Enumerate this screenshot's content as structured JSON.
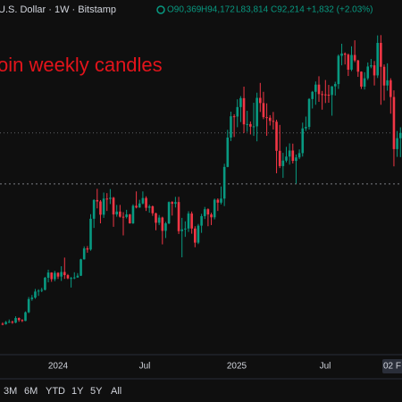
{
  "header": {
    "symbol": "U.S. Dollar · 1W · Bitstamp",
    "open": "O90,369",
    "high": "H94,172",
    "low": "L83,814",
    "close": "C92,214",
    "change": "+1,832 (+2.03%)"
  },
  "range_buttons": [
    "3M",
    "6M",
    "YTD",
    "1Y",
    "5Y",
    "All"
  ],
  "chart_data": {
    "type": "candlestick",
    "title": "oin weekly candles",
    "color_up": "#089981",
    "color_down": "#f23645",
    "title_color": "#e3141b",
    "ylim": [
      15800,
      138400
    ],
    "reference_line": 74500,
    "time_labels": [
      "2024",
      "Jul",
      "2025",
      "Jul",
      "02 F"
    ],
    "open": [
      25900,
      25800,
      26500,
      26600,
      26300,
      27900,
      27200,
      26900,
      29900,
      34500,
      35000,
      37100,
      37400,
      37700,
      41900,
      43700,
      41400,
      43600,
      42300,
      43900,
      42800,
      41700,
      41800,
      42000,
      42600,
      48300,
      52100,
      51700,
      62400,
      68900,
      68400,
      63800,
      69400,
      69300,
      69700,
      63900,
      64900,
      63100,
      63000,
      63900,
      60800,
      66900,
      66300,
      67700,
      69600,
      66200,
      66700,
      64300,
      61000,
      62800,
      58200,
      60800,
      68200,
      67600,
      68200,
      58100,
      58700,
      59000,
      64200,
      59000,
      54100,
      60000,
      63300,
      65700,
      63900,
      62900,
      69000,
      68000,
      69400,
      80400,
      90600,
      98000,
      97900,
      101200,
      104300,
      95200,
      95300,
      94400,
      94500,
      104400,
      102600,
      97700,
      97500,
      96400,
      96100,
      86000,
      80700,
      82600,
      84000,
      86100,
      82500,
      83700,
      85200,
      93800,
      94300,
      104000,
      106500,
      109000,
      105700,
      105600,
      105500,
      105400,
      108400,
      109200,
      119000,
      119800,
      119400,
      114200,
      119300,
      117400,
      113500,
      108300,
      111200,
      115300,
      115700,
      112200,
      123500,
      115200,
      108700,
      110500,
      104700,
      86600,
      90369
    ],
    "high": [
      26400,
      26900,
      27400,
      27000,
      28500,
      28100,
      27500,
      30200,
      35200,
      35900,
      38000,
      37900,
      38400,
      42200,
      44700,
      43800,
      44300,
      43800,
      45900,
      48900,
      43200,
      42200,
      43800,
      43500,
      48500,
      52800,
      52900,
      64000,
      69200,
      72800,
      68900,
      71500,
      71300,
      72700,
      70000,
      67200,
      67200,
      64700,
      65500,
      64100,
      67400,
      71900,
      69000,
      71900,
      70200,
      67300,
      67000,
      64500,
      63700,
      63100,
      61300,
      68400,
      68500,
      70000,
      70000,
      62700,
      61500,
      65000,
      64900,
      59800,
      60600,
      64100,
      66500,
      66000,
      64500,
      69400,
      69500,
      73600,
      81500,
      93300,
      99600,
      98700,
      103900,
      105000,
      108300,
      99900,
      96200,
      102700,
      106200,
      109600,
      106500,
      102500,
      98400,
      99500,
      96800,
      95000,
      85300,
      87400,
      88600,
      88500,
      84700,
      86500,
      95800,
      97900,
      104300,
      106800,
      110100,
      111900,
      106800,
      110600,
      108900,
      108500,
      110000,
      119500,
      123200,
      120200,
      119800,
      122300,
      124400,
      117600,
      113600,
      113300,
      116700,
      117900,
      117200,
      126100,
      126200,
      116000,
      116400,
      111200,
      107000,
      92900,
      94172
    ],
    "low": [
      25400,
      25600,
      26200,
      25900,
      26100,
      26600,
      26500,
      26800,
      29600,
      33900,
      34600,
      35600,
      36900,
      37500,
      40300,
      40500,
      40700,
      41500,
      40800,
      41500,
      41400,
      38500,
      41400,
      41900,
      42500,
      48200,
      50600,
      51300,
      59200,
      66000,
      60800,
      62700,
      65100,
      67500,
      59600,
      63100,
      62800,
      56600,
      62500,
      60700,
      60600,
      66000,
      66200,
      67400,
      65100,
      64500,
      63400,
      58400,
      60200,
      53500,
      55700,
      60500,
      63500,
      66300,
      57100,
      49000,
      56100,
      57800,
      57200,
      52500,
      53600,
      57500,
      62300,
      59800,
      60200,
      62200,
      65100,
      67400,
      66800,
      80300,
      89400,
      90800,
      94200,
      96000,
      92200,
      92600,
      91700,
      91200,
      89300,
      99500,
      97000,
      91200,
      94800,
      93400,
      78200,
      80000,
      76600,
      82000,
      81200,
      81600,
      74600,
      83100,
      84000,
      92900,
      93400,
      100700,
      102000,
      103000,
      100300,
      102600,
      102700,
      98200,
      105200,
      107500,
      115700,
      116000,
      112000,
      113700,
      116800,
      111700,
      107500,
      107300,
      110600,
      114700,
      108700,
      111300,
      102000,
      103500,
      106900,
      98900,
      80600,
      83900,
      83814
    ],
    "close": [
      25800,
      26500,
      26600,
      26300,
      27900,
      27200,
      26900,
      29900,
      34500,
      35000,
      37100,
      37400,
      37700,
      41900,
      43700,
      41400,
      43600,
      42300,
      43900,
      42800,
      41700,
      41800,
      42000,
      42600,
      48300,
      52100,
      51700,
      62400,
      68900,
      68400,
      63800,
      69400,
      69300,
      69700,
      63900,
      64900,
      63100,
      63000,
      63900,
      60800,
      66900,
      66300,
      67700,
      69600,
      66200,
      66700,
      64300,
      61000,
      62800,
      58200,
      60800,
      68200,
      67600,
      68200,
      58100,
      58700,
      59000,
      64200,
      59000,
      54100,
      60000,
      63300,
      65700,
      63900,
      62900,
      69000,
      68000,
      69400,
      80400,
      90600,
      98000,
      97900,
      101200,
      104300,
      95200,
      95300,
      94400,
      94500,
      104400,
      102600,
      97700,
      97500,
      96400,
      96100,
      86000,
      80700,
      82600,
      84000,
      86100,
      82500,
      83700,
      85200,
      93800,
      94300,
      104000,
      106500,
      109000,
      105700,
      105600,
      105500,
      105400,
      108400,
      109200,
      119000,
      119800,
      119400,
      114200,
      119300,
      117400,
      113500,
      108300,
      111200,
      115300,
      115700,
      112200,
      123500,
      115200,
      108700,
      110500,
      104700,
      86600,
      90400,
      92214
    ]
  }
}
